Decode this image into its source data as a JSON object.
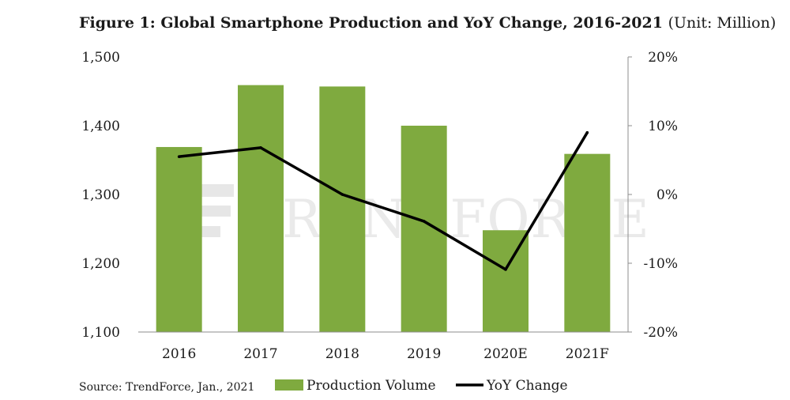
{
  "title": {
    "main": "Figure 1: Global Smartphone Production and YoY Change, 2016-2021",
    "unit": "(Unit: Million)"
  },
  "watermark": {
    "text": "TRENDFORCE",
    "icon": "trendforce-logo-icon"
  },
  "source": "Source: TrendForce, Jan., 2021",
  "colors": {
    "bar": "#7faa3f",
    "line": "#000000",
    "axis": "#8c8c8c"
  },
  "chart_data": {
    "type": "bar",
    "categories": [
      "2016",
      "2017",
      "2018",
      "2019",
      "2020E",
      "2021F"
    ],
    "series": [
      {
        "name": "Production Volume",
        "type": "bar",
        "axis": "left",
        "values": [
          1369,
          1459,
          1457,
          1400,
          1248,
          1359
        ]
      },
      {
        "name": "YoY Change",
        "type": "line",
        "axis": "right",
        "values": [
          5.5,
          6.8,
          0.0,
          -3.9,
          -10.9,
          9.0
        ]
      }
    ],
    "y_left": {
      "min": 1100,
      "max": 1500,
      "ticks": [
        "1,100",
        "1,200",
        "1,300",
        "1,400",
        "1,500"
      ]
    },
    "y_right": {
      "min": -20,
      "max": 20,
      "ticks": [
        "-20%",
        "-10%",
        "0%",
        "10%",
        "20%"
      ]
    },
    "legend": {
      "placement": "bottom"
    },
    "grid": false
  }
}
